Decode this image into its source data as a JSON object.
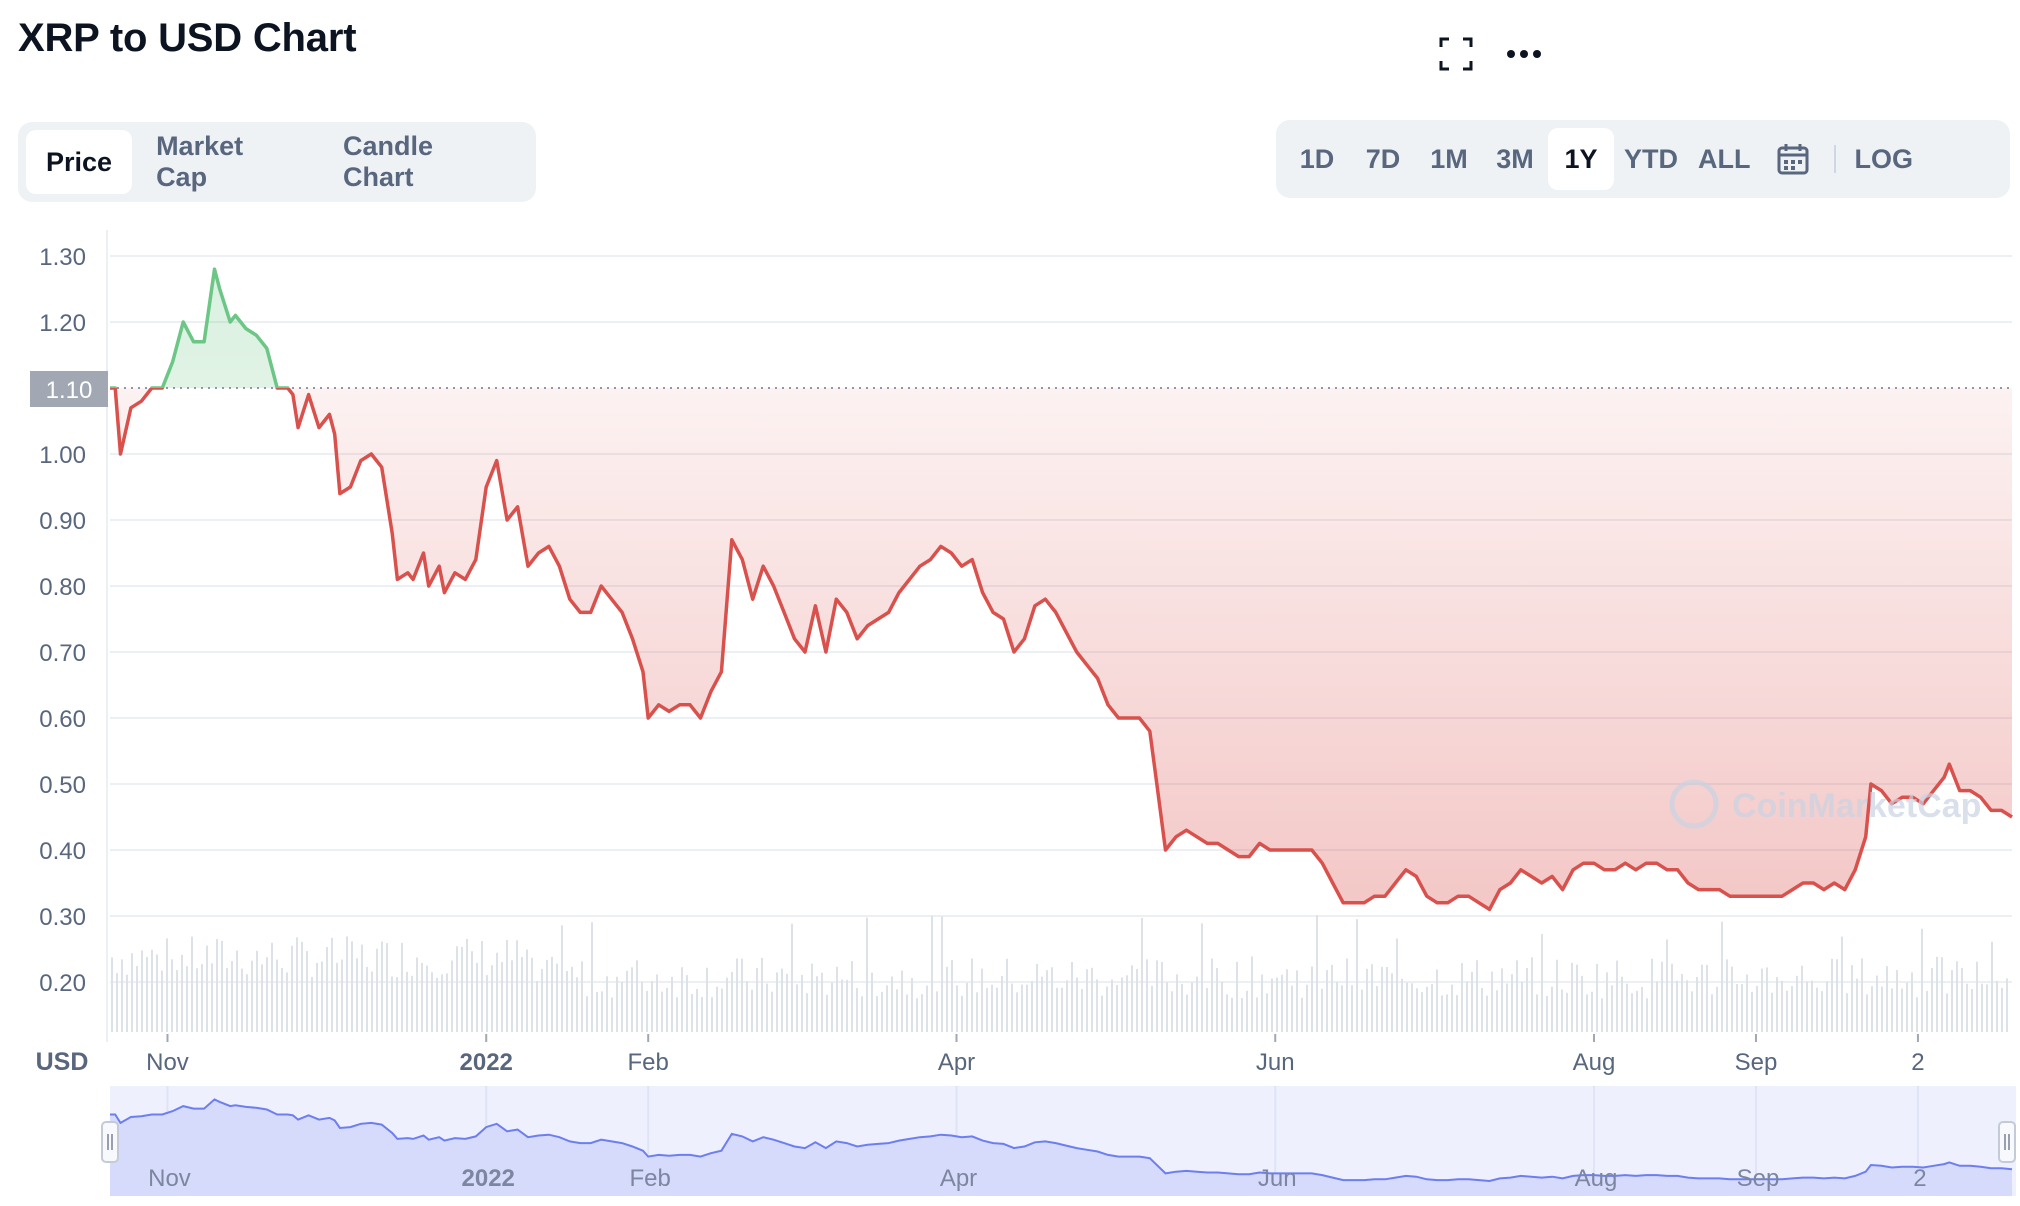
{
  "page": {
    "title": "XRP to USD Chart"
  },
  "toolbar": {
    "fullscreen_icon": "fullscreen-icon",
    "more_icon": "more-icon"
  },
  "tabs": [
    {
      "label": "Price",
      "active": true
    },
    {
      "label": "Market Cap",
      "active": false
    },
    {
      "label": "Candle Chart",
      "active": false
    }
  ],
  "ranges": [
    {
      "label": "1D",
      "active": false
    },
    {
      "label": "7D",
      "active": false
    },
    {
      "label": "1M",
      "active": false
    },
    {
      "label": "3M",
      "active": false
    },
    {
      "label": "1Y",
      "active": true
    },
    {
      "label": "YTD",
      "active": false
    },
    {
      "label": "ALL",
      "active": false
    }
  ],
  "calendar_icon": "calendar-icon",
  "log_label": "LOG",
  "watermark": "CoinMarketCap",
  "colors": {
    "up": "#6cc685",
    "down": "#d9514d",
    "axis": "#58667e",
    "nav": "#6c7ef0"
  },
  "chart_data": {
    "type": "line",
    "ylabel": "USD",
    "ylim": [
      0.2,
      1.3
    ],
    "yticks": [
      "1.30",
      "1.20",
      "1.10",
      "1.00",
      "0.90",
      "0.80",
      "0.70",
      "0.60",
      "0.50",
      "0.40",
      "0.30",
      "0.20"
    ],
    "current_price_label": "1.10",
    "reference_price": 1.1,
    "xticks": [
      {
        "label": "Nov",
        "bold": false,
        "date": "2021-11-01"
      },
      {
        "label": "2022",
        "bold": true,
        "date": "2022-01-01"
      },
      {
        "label": "Feb",
        "bold": false,
        "date": "2022-02-01"
      },
      {
        "label": "Apr",
        "bold": false,
        "date": "2022-04-01"
      },
      {
        "label": "Jun",
        "bold": false,
        "date": "2022-06-01"
      },
      {
        "label": "Aug",
        "bold": false,
        "date": "2022-08-01"
      },
      {
        "label": "Sep",
        "bold": false,
        "date": "2022-09-01"
      },
      {
        "label": "2",
        "bold": false,
        "date": "2022-10-02"
      }
    ],
    "x_start": "2021-10-21",
    "x_end": "2022-10-20",
    "series": [
      {
        "points": [
          [
            "2021-10-21",
            1.1
          ],
          [
            "2021-10-22",
            1.1
          ],
          [
            "2021-10-23",
            1.0
          ],
          [
            "2021-10-25",
            1.07
          ],
          [
            "2021-10-27",
            1.08
          ],
          [
            "2021-10-29",
            1.1
          ],
          [
            "2021-10-31",
            1.1
          ],
          [
            "2021-11-02",
            1.14
          ],
          [
            "2021-11-04",
            1.2
          ],
          [
            "2021-11-06",
            1.17
          ],
          [
            "2021-11-08",
            1.17
          ],
          [
            "2021-11-10",
            1.28
          ],
          [
            "2021-11-11",
            1.25
          ],
          [
            "2021-11-13",
            1.2
          ],
          [
            "2021-11-14",
            1.21
          ],
          [
            "2021-11-16",
            1.19
          ],
          [
            "2021-11-18",
            1.18
          ],
          [
            "2021-11-20",
            1.16
          ],
          [
            "2021-11-22",
            1.1
          ],
          [
            "2021-11-24",
            1.1
          ],
          [
            "2021-11-25",
            1.09
          ],
          [
            "2021-11-26",
            1.04
          ],
          [
            "2021-11-28",
            1.09
          ],
          [
            "2021-11-30",
            1.04
          ],
          [
            "2021-12-02",
            1.06
          ],
          [
            "2021-12-03",
            1.03
          ],
          [
            "2021-12-04",
            0.94
          ],
          [
            "2021-12-06",
            0.95
          ],
          [
            "2021-12-08",
            0.99
          ],
          [
            "2021-12-10",
            1.0
          ],
          [
            "2021-12-12",
            0.98
          ],
          [
            "2021-12-14",
            0.88
          ],
          [
            "2021-12-15",
            0.81
          ],
          [
            "2021-12-17",
            0.82
          ],
          [
            "2021-12-18",
            0.81
          ],
          [
            "2021-12-20",
            0.85
          ],
          [
            "2021-12-21",
            0.8
          ],
          [
            "2021-12-23",
            0.83
          ],
          [
            "2021-12-24",
            0.79
          ],
          [
            "2021-12-26",
            0.82
          ],
          [
            "2021-12-28",
            0.81
          ],
          [
            "2021-12-30",
            0.84
          ],
          [
            "2022-01-01",
            0.95
          ],
          [
            "2022-01-03",
            0.99
          ],
          [
            "2022-01-05",
            0.9
          ],
          [
            "2022-01-07",
            0.92
          ],
          [
            "2022-01-09",
            0.83
          ],
          [
            "2022-01-11",
            0.85
          ],
          [
            "2022-01-13",
            0.86
          ],
          [
            "2022-01-15",
            0.83
          ],
          [
            "2022-01-17",
            0.78
          ],
          [
            "2022-01-19",
            0.76
          ],
          [
            "2022-01-21",
            0.76
          ],
          [
            "2022-01-23",
            0.8
          ],
          [
            "2022-01-25",
            0.78
          ],
          [
            "2022-01-27",
            0.76
          ],
          [
            "2022-01-29",
            0.72
          ],
          [
            "2022-01-31",
            0.67
          ],
          [
            "2022-02-01",
            0.6
          ],
          [
            "2022-02-03",
            0.62
          ],
          [
            "2022-02-05",
            0.61
          ],
          [
            "2022-02-07",
            0.62
          ],
          [
            "2022-02-09",
            0.62
          ],
          [
            "2022-02-11",
            0.6
          ],
          [
            "2022-02-13",
            0.64
          ],
          [
            "2022-02-15",
            0.67
          ],
          [
            "2022-02-17",
            0.87
          ],
          [
            "2022-02-19",
            0.84
          ],
          [
            "2022-02-21",
            0.78
          ],
          [
            "2022-02-23",
            0.83
          ],
          [
            "2022-02-25",
            0.8
          ],
          [
            "2022-02-27",
            0.76
          ],
          [
            "2022-03-01",
            0.72
          ],
          [
            "2022-03-03",
            0.7
          ],
          [
            "2022-03-05",
            0.77
          ],
          [
            "2022-03-07",
            0.7
          ],
          [
            "2022-03-09",
            0.78
          ],
          [
            "2022-03-11",
            0.76
          ],
          [
            "2022-03-13",
            0.72
          ],
          [
            "2022-03-15",
            0.74
          ],
          [
            "2022-03-17",
            0.75
          ],
          [
            "2022-03-19",
            0.76
          ],
          [
            "2022-03-21",
            0.79
          ],
          [
            "2022-03-23",
            0.81
          ],
          [
            "2022-03-25",
            0.83
          ],
          [
            "2022-03-27",
            0.84
          ],
          [
            "2022-03-29",
            0.86
          ],
          [
            "2022-03-31",
            0.85
          ],
          [
            "2022-04-02",
            0.83
          ],
          [
            "2022-04-04",
            0.84
          ],
          [
            "2022-04-06",
            0.79
          ],
          [
            "2022-04-08",
            0.76
          ],
          [
            "2022-04-10",
            0.75
          ],
          [
            "2022-04-12",
            0.7
          ],
          [
            "2022-04-14",
            0.72
          ],
          [
            "2022-04-16",
            0.77
          ],
          [
            "2022-04-18",
            0.78
          ],
          [
            "2022-04-20",
            0.76
          ],
          [
            "2022-04-22",
            0.73
          ],
          [
            "2022-04-24",
            0.7
          ],
          [
            "2022-04-26",
            0.68
          ],
          [
            "2022-04-28",
            0.66
          ],
          [
            "2022-04-30",
            0.62
          ],
          [
            "2022-05-02",
            0.6
          ],
          [
            "2022-05-04",
            0.6
          ],
          [
            "2022-05-06",
            0.6
          ],
          [
            "2022-05-08",
            0.58
          ],
          [
            "2022-05-09",
            0.52
          ],
          [
            "2022-05-11",
            0.4
          ],
          [
            "2022-05-13",
            0.42
          ],
          [
            "2022-05-15",
            0.43
          ],
          [
            "2022-05-17",
            0.42
          ],
          [
            "2022-05-19",
            0.41
          ],
          [
            "2022-05-21",
            0.41
          ],
          [
            "2022-05-23",
            0.4
          ],
          [
            "2022-05-25",
            0.39
          ],
          [
            "2022-05-27",
            0.39
          ],
          [
            "2022-05-29",
            0.41
          ],
          [
            "2022-05-31",
            0.4
          ],
          [
            "2022-06-02",
            0.4
          ],
          [
            "2022-06-04",
            0.4
          ],
          [
            "2022-06-06",
            0.4
          ],
          [
            "2022-06-08",
            0.4
          ],
          [
            "2022-06-10",
            0.38
          ],
          [
            "2022-06-12",
            0.35
          ],
          [
            "2022-06-14",
            0.32
          ],
          [
            "2022-06-16",
            0.32
          ],
          [
            "2022-06-18",
            0.32
          ],
          [
            "2022-06-20",
            0.33
          ],
          [
            "2022-06-22",
            0.33
          ],
          [
            "2022-06-24",
            0.35
          ],
          [
            "2022-06-26",
            0.37
          ],
          [
            "2022-06-28",
            0.36
          ],
          [
            "2022-06-30",
            0.33
          ],
          [
            "2022-07-02",
            0.32
          ],
          [
            "2022-07-04",
            0.32
          ],
          [
            "2022-07-06",
            0.33
          ],
          [
            "2022-07-08",
            0.33
          ],
          [
            "2022-07-10",
            0.32
          ],
          [
            "2022-07-12",
            0.31
          ],
          [
            "2022-07-14",
            0.34
          ],
          [
            "2022-07-16",
            0.35
          ],
          [
            "2022-07-18",
            0.37
          ],
          [
            "2022-07-20",
            0.36
          ],
          [
            "2022-07-22",
            0.35
          ],
          [
            "2022-07-24",
            0.36
          ],
          [
            "2022-07-26",
            0.34
          ],
          [
            "2022-07-28",
            0.37
          ],
          [
            "2022-07-30",
            0.38
          ],
          [
            "2022-08-01",
            0.38
          ],
          [
            "2022-08-03",
            0.37
          ],
          [
            "2022-08-05",
            0.37
          ],
          [
            "2022-08-07",
            0.38
          ],
          [
            "2022-08-09",
            0.37
          ],
          [
            "2022-08-11",
            0.38
          ],
          [
            "2022-08-13",
            0.38
          ],
          [
            "2022-08-15",
            0.37
          ],
          [
            "2022-08-17",
            0.37
          ],
          [
            "2022-08-19",
            0.35
          ],
          [
            "2022-08-21",
            0.34
          ],
          [
            "2022-08-23",
            0.34
          ],
          [
            "2022-08-25",
            0.34
          ],
          [
            "2022-08-27",
            0.33
          ],
          [
            "2022-08-29",
            0.33
          ],
          [
            "2022-08-31",
            0.33
          ],
          [
            "2022-09-02",
            0.33
          ],
          [
            "2022-09-04",
            0.33
          ],
          [
            "2022-09-06",
            0.33
          ],
          [
            "2022-09-08",
            0.34
          ],
          [
            "2022-09-10",
            0.35
          ],
          [
            "2022-09-12",
            0.35
          ],
          [
            "2022-09-14",
            0.34
          ],
          [
            "2022-09-16",
            0.35
          ],
          [
            "2022-09-18",
            0.34
          ],
          [
            "2022-09-20",
            0.37
          ],
          [
            "2022-09-22",
            0.42
          ],
          [
            "2022-09-23",
            0.5
          ],
          [
            "2022-09-25",
            0.49
          ],
          [
            "2022-09-27",
            0.47
          ],
          [
            "2022-09-29",
            0.48
          ],
          [
            "2022-10-01",
            0.48
          ],
          [
            "2022-10-03",
            0.47
          ],
          [
            "2022-10-05",
            0.49
          ],
          [
            "2022-10-07",
            0.51
          ],
          [
            "2022-10-08",
            0.53
          ],
          [
            "2022-10-10",
            0.49
          ],
          [
            "2022-10-12",
            0.49
          ],
          [
            "2022-10-14",
            0.48
          ],
          [
            "2022-10-16",
            0.46
          ],
          [
            "2022-10-18",
            0.46
          ],
          [
            "2022-10-20",
            0.45
          ]
        ]
      }
    ]
  }
}
